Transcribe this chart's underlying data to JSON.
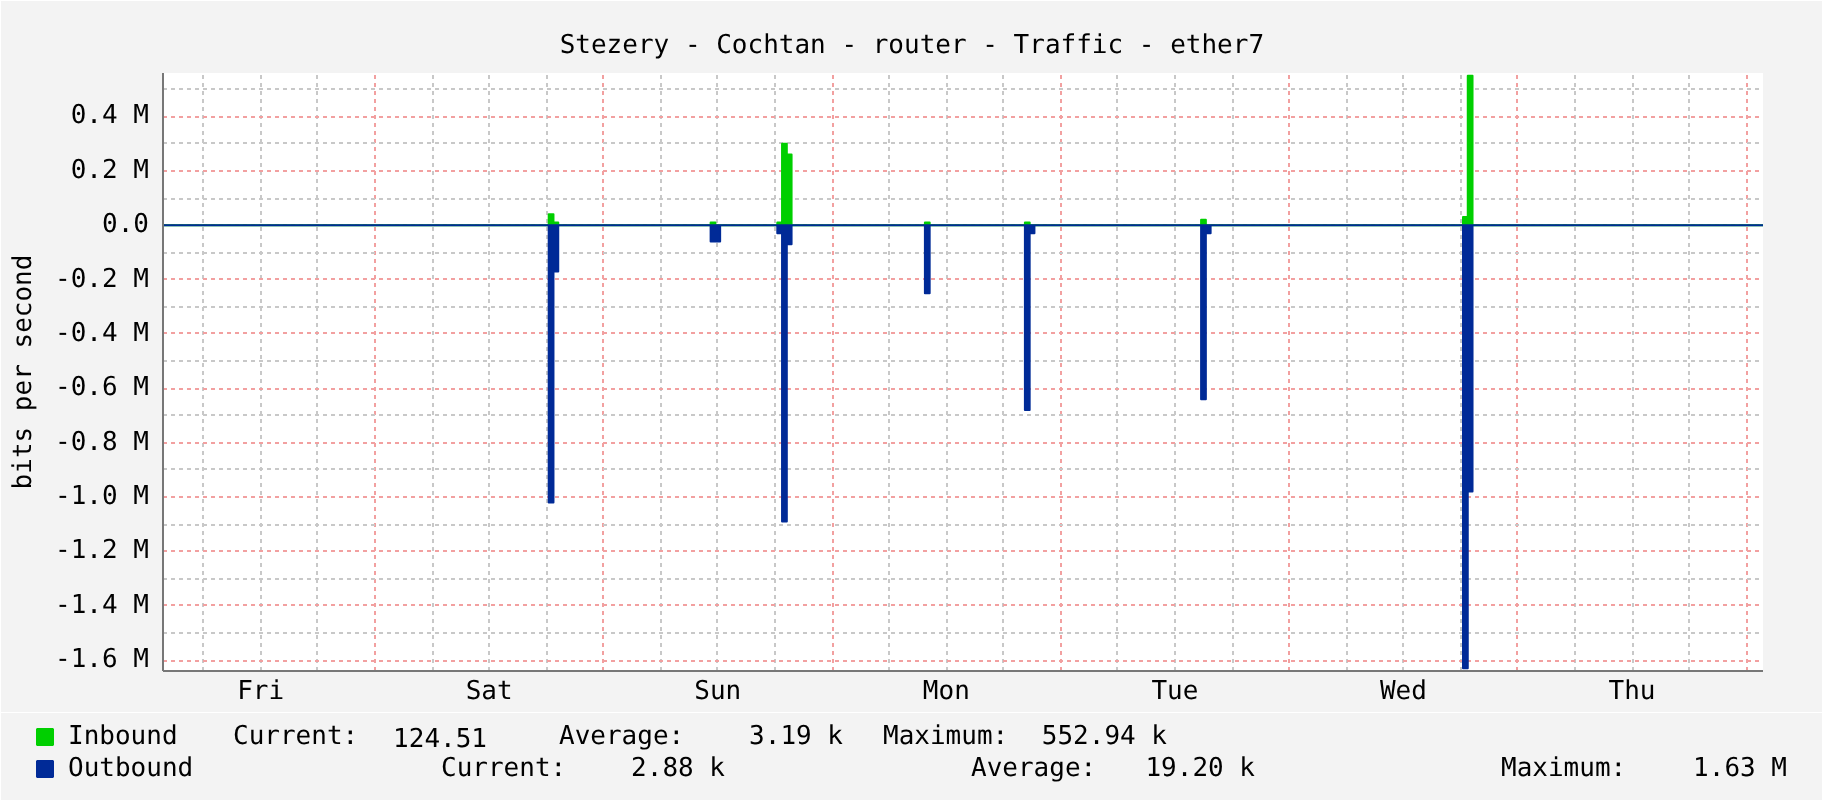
{
  "chart_data": {
    "type": "area",
    "title": "Stezery - Cochtan - router - Traffic - ether7",
    "ylabel": "bits per second",
    "categories": [
      null,
      null,
      null,
      null,
      null,
      null,
      null,
      null,
      null,
      null,
      null,
      null,
      null,
      null,
      null,
      null,
      null,
      null,
      null,
      null,
      "Fri",
      null,
      null,
      null,
      null,
      null,
      null,
      null,
      null,
      null,
      null,
      null,
      null,
      null,
      null,
      null,
      null,
      null,
      null,
      null,
      null,
      null,
      null,
      null,
      null,
      null,
      null,
      null,
      null,
      null,
      null,
      null,
      null,
      null,
      null,
      null,
      null,
      null,
      null,
      null,
      null,
      null,
      null,
      null,
      null,
      null,
      null,
      null,
      "Sat",
      null,
      null,
      null,
      null,
      null,
      null,
      null,
      null,
      null,
      null,
      null,
      null,
      null,
      null,
      null,
      null,
      null,
      null,
      null,
      null,
      null,
      null,
      null,
      null,
      null,
      null,
      null,
      null,
      null,
      null,
      null,
      null,
      null,
      null,
      null,
      null,
      null,
      null,
      null,
      null,
      null,
      null,
      null,
      null,
      null,
      null,
      null,
      "Sun",
      null,
      null,
      null,
      null,
      null,
      null,
      null,
      null,
      null,
      null,
      null,
      null,
      null,
      null,
      null,
      null,
      null,
      null,
      null,
      null,
      null,
      null,
      null,
      null,
      null,
      null,
      null,
      null,
      null,
      null,
      null,
      null,
      null,
      null,
      null,
      null,
      null,
      null,
      null,
      null,
      null,
      null,
      null,
      null,
      null,
      null,
      null,
      "Mon",
      null,
      null,
      null,
      null,
      null,
      null,
      null,
      null,
      null,
      null,
      null,
      null,
      null,
      null,
      null,
      null,
      null,
      null,
      null,
      null,
      null,
      null,
      null,
      null,
      null,
      null,
      null,
      null,
      null,
      null,
      null,
      null,
      null,
      null,
      null,
      null,
      null,
      null,
      null,
      null,
      null,
      null,
      null,
      null,
      null,
      null,
      null,
      "Tue",
      null,
      null,
      null,
      null,
      null,
      null,
      null,
      null,
      null,
      null,
      null,
      null,
      null,
      null,
      null,
      null,
      null,
      null,
      null,
      null,
      null,
      null,
      null,
      null,
      null,
      null,
      null,
      null,
      null,
      null,
      null,
      null,
      null,
      null,
      null,
      null,
      null,
      null,
      null,
      null,
      null,
      null,
      null,
      null,
      null,
      null,
      null,
      "Wed",
      null,
      null,
      null,
      null,
      null,
      null,
      null,
      null,
      null,
      null,
      null,
      null,
      null,
      null,
      null,
      null,
      null,
      null,
      null,
      null,
      null,
      null,
      null,
      null,
      null,
      null,
      null,
      null,
      null,
      null,
      null,
      null,
      null,
      null,
      null,
      null,
      null,
      null,
      null,
      null,
      null,
      null,
      null,
      null,
      null,
      null,
      null,
      "Thu",
      null,
      null,
      null,
      null,
      null,
      null,
      null,
      null,
      null,
      null,
      null,
      null,
      null,
      null,
      null,
      null,
      null,
      null,
      null,
      null,
      null,
      null,
      null,
      null,
      null,
      null,
      null
    ],
    "series": [
      {
        "name": "Inbound",
        "color": "#00cf00",
        "values": [
          0,
          0,
          0,
          0,
          0,
          0,
          0,
          0,
          0,
          0,
          0,
          0,
          0,
          0,
          0,
          0,
          0,
          0,
          0,
          0,
          0,
          0,
          0,
          0,
          0,
          0,
          0,
          0,
          0,
          0,
          0,
          0,
          0,
          0,
          0,
          0,
          0,
          0,
          0,
          0,
          0,
          0,
          0,
          0,
          0,
          0,
          0,
          0,
          0,
          0,
          0,
          0,
          0,
          0,
          0,
          0,
          0,
          0,
          0,
          0,
          0,
          0,
          0,
          0,
          0,
          0,
          0,
          0,
          0,
          0,
          0,
          0,
          0,
          0,
          0,
          0,
          0,
          0,
          0,
          0,
          0,
          0.04,
          0.01,
          0,
          0,
          0,
          0,
          0,
          0,
          0,
          0,
          0,
          0,
          0,
          0,
          0,
          0,
          0,
          0,
          0,
          0,
          0,
          0,
          0,
          0,
          0,
          0,
          0,
          0,
          0,
          0,
          0,
          0,
          0,
          0,
          0.01,
          0,
          0,
          0,
          0,
          0,
          0,
          0,
          0,
          0,
          0,
          0,
          0,
          0,
          0.01,
          0.3,
          0.26,
          0,
          0,
          0,
          0,
          0,
          0,
          0,
          0,
          0,
          0,
          0,
          0,
          0,
          0,
          0,
          0,
          0,
          0,
          0,
          0,
          0,
          0,
          0,
          0,
          0,
          0,
          0,
          0,
          0.01,
          0,
          0,
          0,
          0,
          0,
          0,
          0,
          0,
          0,
          0,
          0,
          0,
          0,
          0,
          0,
          0,
          0,
          0,
          0,
          0,
          0.01,
          0,
          0,
          0,
          0,
          0,
          0,
          0,
          0,
          0,
          0,
          0,
          0,
          0,
          0,
          0,
          0,
          0,
          0,
          0,
          0,
          0,
          0,
          0,
          0,
          0,
          0,
          0,
          0,
          0,
          0,
          0,
          0,
          0,
          0,
          0,
          0,
          0.02,
          0,
          0,
          0,
          0,
          0,
          0,
          0,
          0,
          0,
          0,
          0,
          0,
          0,
          0,
          0,
          0,
          0,
          0,
          0,
          0,
          0,
          0,
          0,
          0,
          0,
          0,
          0,
          0,
          0,
          0,
          0,
          0,
          0,
          0,
          0,
          0,
          0,
          0,
          0,
          0,
          0,
          0,
          0,
          0,
          0,
          0,
          0,
          0,
          0,
          0,
          0,
          0,
          0,
          0,
          0.03,
          0.55,
          0,
          0,
          0,
          0,
          0,
          0,
          0,
          0,
          0,
          0,
          0,
          0,
          0,
          0,
          0,
          0,
          0,
          0,
          0,
          0,
          0,
          0,
          0,
          0,
          0,
          0,
          0,
          0,
          0,
          0,
          0,
          0,
          0,
          0,
          0,
          0,
          0,
          0,
          0,
          0,
          0,
          0,
          0,
          0,
          0,
          0,
          0,
          0,
          0,
          0,
          0,
          0,
          0,
          0,
          0,
          0,
          0,
          0,
          0,
          0,
          0
        ]
      },
      {
        "name": "Outbound",
        "color": "#002a97",
        "values": [
          0,
          0,
          0,
          0,
          0,
          0,
          0,
          0,
          0,
          0,
          0,
          0,
          0,
          0,
          0,
          0,
          0,
          0,
          0,
          0,
          0,
          0,
          0,
          0,
          0,
          0,
          0,
          0,
          0,
          0,
          0,
          0,
          0,
          0,
          0,
          0,
          0,
          0,
          0,
          0,
          0,
          0,
          0,
          0,
          0,
          0,
          0,
          0,
          0,
          0,
          0,
          0,
          0,
          0,
          0,
          0,
          0,
          0,
          0,
          0,
          0,
          0,
          0,
          0,
          0,
          0,
          0,
          0,
          0,
          0,
          0,
          0,
          0,
          0,
          0,
          0,
          0,
          0,
          0,
          0,
          0,
          -1.02,
          -0.17,
          0,
          0,
          0,
          0,
          0,
          0,
          0,
          0,
          0,
          0,
          0,
          0,
          0,
          0,
          0,
          0,
          0,
          0,
          0,
          0,
          0,
          0,
          0,
          0,
          0,
          0,
          0,
          0,
          0,
          0,
          0,
          0,
          -0.06,
          -0.06,
          0,
          0,
          0,
          0,
          0,
          0,
          0,
          0,
          0,
          0,
          0,
          0,
          -0.03,
          -1.09,
          -0.07,
          0,
          0,
          0,
          0,
          0,
          0,
          0,
          0,
          0,
          0,
          0,
          0,
          0,
          0,
          0,
          0,
          0,
          0,
          0,
          0,
          0,
          0,
          0,
          0,
          0,
          0,
          0,
          0,
          -0.25,
          0,
          0,
          0,
          0,
          0,
          0,
          0,
          0,
          0,
          0,
          0,
          0,
          0,
          0,
          0,
          0,
          0,
          0,
          0,
          0,
          -0.68,
          -0.03,
          0,
          0,
          0,
          0,
          0,
          0,
          0,
          0,
          0,
          0,
          0,
          0,
          0,
          0,
          0,
          0,
          0,
          0,
          0,
          0,
          0,
          0,
          0,
          0,
          0,
          0,
          0,
          0,
          0,
          0,
          0,
          0,
          0,
          0,
          0,
          -0.64,
          -0.03,
          0,
          0,
          0,
          0,
          0,
          0,
          0,
          0,
          0,
          0,
          0,
          0,
          0,
          0,
          0,
          0,
          0,
          0,
          0,
          0,
          0,
          0,
          0,
          0,
          0,
          0,
          0,
          0,
          0,
          0,
          0,
          0,
          0,
          0,
          0,
          0,
          0,
          0,
          0,
          0,
          0,
          0,
          0,
          0,
          0,
          0,
          0,
          0,
          0,
          0,
          0,
          0,
          0,
          -1.63,
          -0.98,
          0,
          0,
          0,
          0,
          0,
          0,
          0,
          0,
          0,
          0,
          0,
          0,
          0,
          0,
          0,
          0,
          0,
          0,
          0,
          0,
          0,
          0,
          0,
          0,
          0,
          0,
          0,
          0,
          0,
          0,
          0,
          0,
          0,
          0,
          0,
          0,
          0,
          0,
          0,
          0,
          0,
          0,
          0,
          0,
          0,
          0,
          0,
          0,
          0,
          0,
          0,
          0,
          0,
          0,
          0,
          0,
          0,
          0,
          0,
          0,
          0
        ]
      }
    ],
    "ylim": [
      -1.64,
      0.56
    ],
    "yticks": [
      {
        "value": 0.5,
        "label": null
      },
      {
        "value": 0.4,
        "label": "0.4 M"
      },
      {
        "value": 0.3,
        "label": null
      },
      {
        "value": 0.2,
        "label": "0.2 M"
      },
      {
        "value": 0.1,
        "label": null
      },
      {
        "value": 0,
        "label": "0.0"
      },
      {
        "value": -0.1,
        "label": null
      },
      {
        "value": -0.2,
        "label": "-0.2 M"
      },
      {
        "value": -0.3,
        "label": null
      },
      {
        "value": -0.4,
        "label": "-0.4 M"
      },
      {
        "value": -0.5,
        "label": null
      },
      {
        "value": -0.6,
        "label": "-0.6 M"
      },
      {
        "value": -0.7,
        "label": null
      },
      {
        "value": -0.8,
        "label": "-0.8 M"
      },
      {
        "value": -0.9,
        "label": null
      },
      {
        "value": -1.0,
        "label": "-1.0 M"
      },
      {
        "value": -1.1,
        "label": null
      },
      {
        "value": -1.2,
        "label": "-1.2 M"
      },
      {
        "value": -1.3,
        "label": null
      },
      {
        "value": -1.4,
        "label": "-1.4 M"
      },
      {
        "value": -1.5,
        "label": null
      },
      {
        "value": -1.6,
        "label": "-1.6 M"
      }
    ],
    "grid": true,
    "legend": "bottom left",
    "annotations": [
      "Current:",
      "124.51",
      "Average:",
      "3.19 k",
      "Maximum:",
      "552.94 k",
      "Current:",
      "2.88 k",
      "Average:",
      "19.20 k",
      "Maximum:",
      "1.63 M"
    ]
  }
}
